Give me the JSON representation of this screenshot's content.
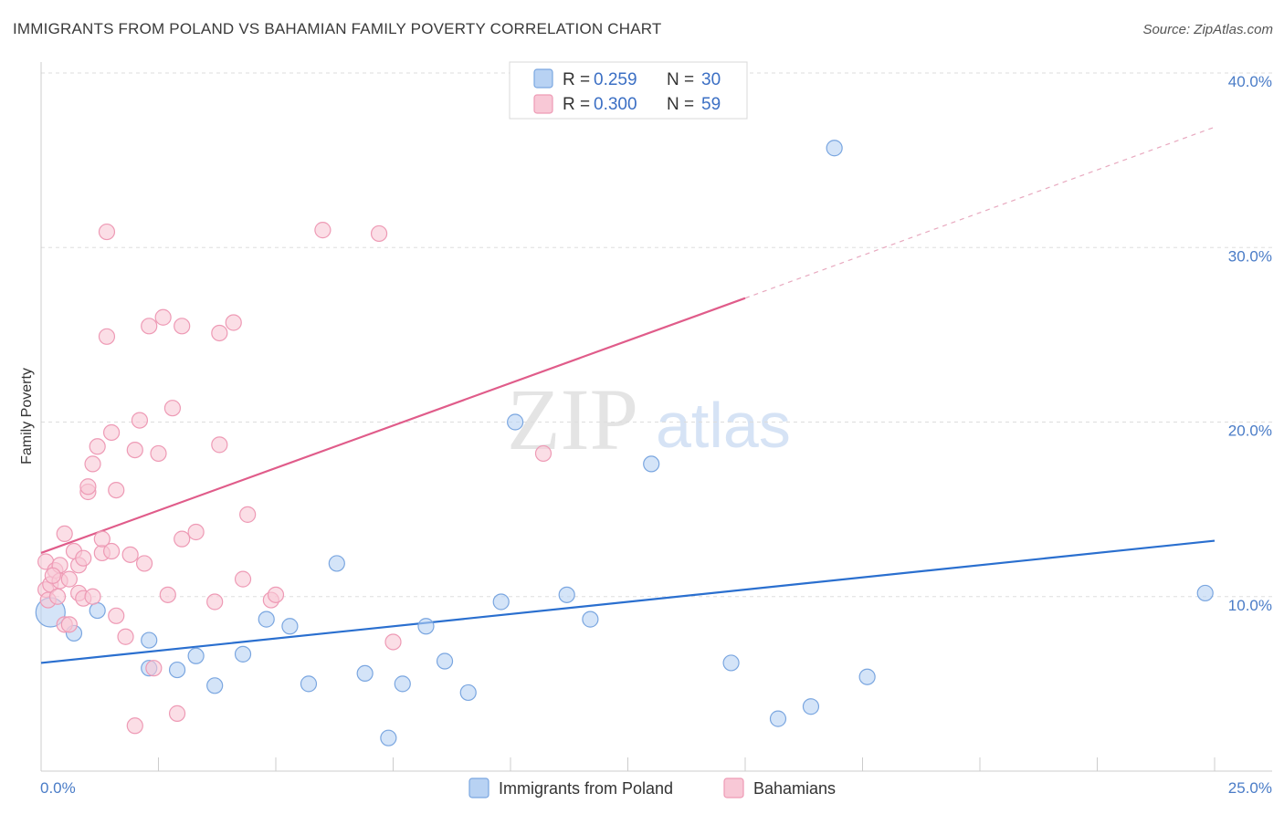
{
  "header": {
    "title": "IMMIGRANTS FROM POLAND VS BAHAMIAN FAMILY POVERTY CORRELATION CHART",
    "source": "Source: ZipAtlas.com"
  },
  "watermark": {
    "zip": "ZIP",
    "atlas": "atlas"
  },
  "colors": {
    "blue_fill": "#b8d2f3",
    "blue_stroke": "#7aa6e0",
    "blue_line": "#2a6fcf",
    "pink_fill": "#f8c8d6",
    "pink_stroke": "#ee9ab5",
    "pink_line": "#e05c8a",
    "grid": "#dddddd",
    "tick_text": "#4a7cc7"
  },
  "legend": {
    "rows": [
      {
        "r_label": "R =",
        "r_value": "0.259",
        "n_label": "N =",
        "n_value": "30"
      },
      {
        "r_label": "R =",
        "r_value": "0.300",
        "n_label": "N =",
        "n_value": "59"
      }
    ]
  },
  "chart_data": {
    "type": "scatter",
    "title": "IMMIGRANTS FROM POLAND VS BAHAMIAN FAMILY POVERTY CORRELATION CHART",
    "xlabel": "",
    "ylabel": "Family Poverty",
    "xlim": [
      0,
      25
    ],
    "ylim": [
      0,
      40
    ],
    "x_tick_labels": [
      "0.0%",
      "25.0%"
    ],
    "y_ticks": [
      10,
      20,
      30,
      40
    ],
    "y_tick_labels": [
      "10.0%",
      "20.0%",
      "30.0%",
      "40.0%"
    ],
    "grid": true,
    "legend_position": "top-center",
    "series": [
      {
        "name": "Immigrants from Poland",
        "color": "blue",
        "r": 0.259,
        "n": 30,
        "trend": {
          "x": [
            0,
            25
          ],
          "y": [
            6.2,
            13.2
          ]
        },
        "points": [
          [
            0.2,
            9.1,
            "large"
          ],
          [
            0.7,
            7.9
          ],
          [
            1.2,
            9.2
          ],
          [
            2.3,
            7.5
          ],
          [
            2.3,
            5.9
          ],
          [
            2.9,
            5.8
          ],
          [
            3.3,
            6.6
          ],
          [
            3.7,
            4.9
          ],
          [
            4.3,
            6.7
          ],
          [
            4.8,
            8.7
          ],
          [
            5.3,
            8.3
          ],
          [
            5.7,
            5.0
          ],
          [
            6.3,
            11.9
          ],
          [
            6.9,
            5.6
          ],
          [
            7.4,
            1.9
          ],
          [
            7.7,
            5.0
          ],
          [
            8.2,
            8.3
          ],
          [
            8.6,
            6.3
          ],
          [
            9.1,
            4.5
          ],
          [
            9.8,
            9.7
          ],
          [
            10.1,
            20.0
          ],
          [
            11.2,
            10.1
          ],
          [
            11.7,
            8.7
          ],
          [
            13.0,
            17.6
          ],
          [
            14.7,
            6.2
          ],
          [
            15.7,
            3.0
          ],
          [
            16.4,
            3.7
          ],
          [
            16.9,
            35.7
          ],
          [
            17.6,
            5.4
          ],
          [
            24.8,
            10.2
          ]
        ]
      },
      {
        "name": "Bahamians",
        "color": "pink",
        "r": 0.3,
        "n": 59,
        "trend": {
          "x": [
            0,
            15
          ],
          "y": [
            12.5,
            27.1
          ]
        },
        "trend_dashed": {
          "x": [
            15,
            25
          ],
          "y": [
            27.1,
            36.9
          ]
        },
        "points": [
          [
            0.1,
            12.0
          ],
          [
            0.1,
            10.4
          ],
          [
            0.2,
            10.7
          ],
          [
            0.3,
            11.5
          ],
          [
            0.4,
            11.8
          ],
          [
            0.4,
            10.9
          ],
          [
            0.5,
            13.6
          ],
          [
            0.5,
            8.4
          ],
          [
            0.6,
            11.0
          ],
          [
            0.6,
            8.4
          ],
          [
            0.7,
            12.6
          ],
          [
            0.8,
            10.2
          ],
          [
            0.8,
            11.8
          ],
          [
            0.9,
            9.9
          ],
          [
            0.9,
            12.2
          ],
          [
            1.0,
            16.0
          ],
          [
            1.0,
            16.3
          ],
          [
            1.1,
            10.0
          ],
          [
            1.1,
            17.6
          ],
          [
            1.2,
            18.6
          ],
          [
            1.3,
            12.5
          ],
          [
            1.3,
            13.3
          ],
          [
            1.4,
            24.9
          ],
          [
            1.4,
            30.9
          ],
          [
            1.5,
            19.4
          ],
          [
            1.5,
            12.6
          ],
          [
            1.6,
            16.1
          ],
          [
            1.6,
            8.9
          ],
          [
            1.8,
            7.7
          ],
          [
            1.9,
            12.4
          ],
          [
            2.0,
            18.4
          ],
          [
            2.0,
            2.6
          ],
          [
            2.1,
            20.1
          ],
          [
            2.2,
            11.9
          ],
          [
            2.3,
            25.5
          ],
          [
            2.4,
            5.9
          ],
          [
            2.5,
            18.2
          ],
          [
            2.6,
            26.0
          ],
          [
            2.7,
            10.1
          ],
          [
            2.8,
            20.8
          ],
          [
            2.9,
            3.3
          ],
          [
            3.0,
            13.3
          ],
          [
            3.0,
            25.5
          ],
          [
            3.3,
            13.7
          ],
          [
            3.7,
            9.7
          ],
          [
            3.8,
            25.1
          ],
          [
            3.8,
            18.7
          ],
          [
            4.1,
            25.7
          ],
          [
            4.3,
            11.0
          ],
          [
            4.4,
            14.7
          ],
          [
            4.9,
            9.8
          ],
          [
            5.0,
            10.1
          ],
          [
            6.0,
            31.0
          ],
          [
            7.2,
            30.8
          ],
          [
            7.5,
            7.4
          ],
          [
            10.7,
            18.2
          ],
          [
            0.15,
            9.8
          ],
          [
            0.25,
            11.2
          ],
          [
            0.35,
            10.0
          ]
        ]
      }
    ]
  },
  "bottom_legend": {
    "items": [
      {
        "label": "Immigrants from Poland"
      },
      {
        "label": "Bahamians"
      }
    ]
  }
}
